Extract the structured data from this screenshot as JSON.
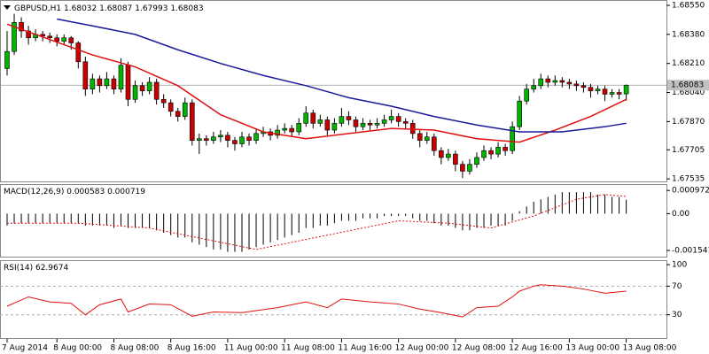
{
  "chart_data": [
    {
      "type": "candlestick",
      "title": "GBPUSD,H1",
      "up_color": "#00b400",
      "down_color": "#c80000",
      "wick_color": "#000000",
      "ylim": [
        1.6752,
        1.68576
      ],
      "yticks": [
        {
          "value": 1.6855,
          "label": "1.68550"
        },
        {
          "value": 1.6838,
          "label": "1.68380"
        },
        {
          "value": 1.6821,
          "label": "1.68210"
        },
        {
          "value": 1.6804,
          "label": "1.68040"
        },
        {
          "value": 1.6787,
          "label": "1.67870"
        },
        {
          "value": 1.67705,
          "label": "1.67705"
        },
        {
          "value": 1.67535,
          "label": "1.67535"
        }
      ],
      "x_labels": [
        {
          "index": 0,
          "label": "7 Aug 2014"
        },
        {
          "index": 7,
          "label": "8 Aug 00:00"
        },
        {
          "index": 15,
          "label": "8 Aug 08:00"
        },
        {
          "index": 23,
          "label": "8 Aug 16:00"
        },
        {
          "index": 31,
          "label": "11 Aug 00:00"
        },
        {
          "index": 39,
          "label": "11 Aug 08:00"
        },
        {
          "index": 47,
          "label": "11 Aug 16:00"
        },
        {
          "index": 55,
          "label": "12 Aug 00:00"
        },
        {
          "index": 63,
          "label": "12 Aug 08:00"
        },
        {
          "index": 71,
          "label": "12 Aug 16:00"
        },
        {
          "index": 79,
          "label": "13 Aug 00:00"
        },
        {
          "index": 87,
          "label": "13 Aug 08:00"
        }
      ],
      "ohlc": [
        [
          1.6818,
          1.684,
          1.6814,
          1.6828
        ],
        [
          1.6828,
          1.685,
          1.6826,
          1.6845
        ],
        [
          1.6845,
          1.6848,
          1.6836,
          1.684
        ],
        [
          1.684,
          1.6843,
          1.6832,
          1.6836
        ],
        [
          1.6836,
          1.6841,
          1.6834,
          1.6838
        ],
        [
          1.6838,
          1.684,
          1.6834,
          1.6837
        ],
        [
          1.6837,
          1.6839,
          1.6833,
          1.6836
        ],
        [
          1.6836,
          1.6838,
          1.6831,
          1.6834
        ],
        [
          1.6834,
          1.6838,
          1.6832,
          1.6836
        ],
        [
          1.6836,
          1.6837,
          1.6829,
          1.6833
        ],
        [
          1.6833,
          1.6834,
          1.6818,
          1.6822
        ],
        [
          1.6822,
          1.6825,
          1.6802,
          1.6806
        ],
        [
          1.6806,
          1.6815,
          1.6803,
          1.6812
        ],
        [
          1.6812,
          1.6814,
          1.6804,
          1.6808
        ],
        [
          1.6808,
          1.6816,
          1.6806,
          1.6812
        ],
        [
          1.6812,
          1.6814,
          1.6803,
          1.6806
        ],
        [
          1.6806,
          1.6824,
          1.6804,
          1.682
        ],
        [
          1.682,
          1.6822,
          1.6796,
          1.68
        ],
        [
          1.68,
          1.6811,
          1.6798,
          1.6808
        ],
        [
          1.6808,
          1.681,
          1.6802,
          1.6805
        ],
        [
          1.6805,
          1.6813,
          1.6803,
          1.681
        ],
        [
          1.681,
          1.6812,
          1.6797,
          1.68
        ],
        [
          1.68,
          1.6803,
          1.6795,
          1.6798
        ],
        [
          1.6798,
          1.68,
          1.679,
          1.6793
        ],
        [
          1.6793,
          1.6795,
          1.6787,
          1.679
        ],
        [
          1.679,
          1.6801,
          1.6788,
          1.6798
        ],
        [
          1.6798,
          1.68,
          1.6773,
          1.6776
        ],
        [
          1.6776,
          1.678,
          1.6768,
          1.6777
        ],
        [
          1.6777,
          1.6779,
          1.6773,
          1.6776
        ],
        [
          1.6776,
          1.6781,
          1.6774,
          1.6778
        ],
        [
          1.6778,
          1.6782,
          1.6775,
          1.6779
        ],
        [
          1.6779,
          1.6781,
          1.6772,
          1.6776
        ],
        [
          1.6776,
          1.6778,
          1.677,
          1.6774
        ],
        [
          1.6774,
          1.6781,
          1.6772,
          1.6778
        ],
        [
          1.6778,
          1.678,
          1.6773,
          1.6776
        ],
        [
          1.6776,
          1.6783,
          1.6774,
          1.678
        ],
        [
          1.678,
          1.6784,
          1.6778,
          1.6781
        ],
        [
          1.6781,
          1.6783,
          1.6776,
          1.6779
        ],
        [
          1.6779,
          1.6785,
          1.6777,
          1.6782
        ],
        [
          1.6782,
          1.6786,
          1.678,
          1.6783
        ],
        [
          1.6783,
          1.6785,
          1.6778,
          1.6781
        ],
        [
          1.6781,
          1.6789,
          1.6779,
          1.6786
        ],
        [
          1.6786,
          1.6796,
          1.6784,
          1.6792
        ],
        [
          1.6792,
          1.6794,
          1.6783,
          1.6786
        ],
        [
          1.6786,
          1.6791,
          1.6784,
          1.6788
        ],
        [
          1.6788,
          1.679,
          1.6779,
          1.6782
        ],
        [
          1.6782,
          1.6789,
          1.678,
          1.6786
        ],
        [
          1.6786,
          1.6795,
          1.6784,
          1.679
        ],
        [
          1.679,
          1.6793,
          1.6785,
          1.6788
        ],
        [
          1.6788,
          1.679,
          1.6781,
          1.6784
        ],
        [
          1.6784,
          1.6789,
          1.6782,
          1.6786
        ],
        [
          1.6786,
          1.6788,
          1.6782,
          1.6785
        ],
        [
          1.6785,
          1.6789,
          1.6783,
          1.6786
        ],
        [
          1.6786,
          1.6791,
          1.6784,
          1.6788
        ],
        [
          1.6788,
          1.6794,
          1.6786,
          1.679
        ],
        [
          1.679,
          1.6792,
          1.6784,
          1.6787
        ],
        [
          1.6787,
          1.6789,
          1.6783,
          1.6786
        ],
        [
          1.6786,
          1.6788,
          1.6777,
          1.678
        ],
        [
          1.678,
          1.6782,
          1.6772,
          1.6776
        ],
        [
          1.6776,
          1.6781,
          1.6774,
          1.6778
        ],
        [
          1.6778,
          1.678,
          1.6767,
          1.677
        ],
        [
          1.677,
          1.6772,
          1.6762,
          1.6766
        ],
        [
          1.6766,
          1.6771,
          1.6764,
          1.6768
        ],
        [
          1.6768,
          1.677,
          1.6758,
          1.6762
        ],
        [
          1.6762,
          1.6764,
          1.6754,
          1.6758
        ],
        [
          1.6758,
          1.6765,
          1.6756,
          1.6762
        ],
        [
          1.6762,
          1.6769,
          1.676,
          1.6766
        ],
        [
          1.6766,
          1.6773,
          1.6764,
          1.677
        ],
        [
          1.677,
          1.6772,
          1.6765,
          1.6768
        ],
        [
          1.6768,
          1.6775,
          1.6766,
          1.6772
        ],
        [
          1.6772,
          1.6774,
          1.6767,
          1.677
        ],
        [
          1.677,
          1.6787,
          1.6768,
          1.6784
        ],
        [
          1.6784,
          1.6802,
          1.6782,
          1.6799
        ],
        [
          1.6799,
          1.6809,
          1.6797,
          1.6806
        ],
        [
          1.6806,
          1.6812,
          1.6804,
          1.6808
        ],
        [
          1.6808,
          1.6815,
          1.6806,
          1.6812
        ],
        [
          1.6812,
          1.6814,
          1.6807,
          1.681
        ],
        [
          1.681,
          1.6814,
          1.6808,
          1.6811
        ],
        [
          1.6811,
          1.6813,
          1.6807,
          1.681
        ],
        [
          1.681,
          1.6812,
          1.6806,
          1.6809
        ],
        [
          1.6809,
          1.6811,
          1.6805,
          1.6808
        ],
        [
          1.6808,
          1.681,
          1.6804,
          1.6807
        ],
        [
          1.6807,
          1.6809,
          1.6801,
          1.6805
        ],
        [
          1.6805,
          1.6808,
          1.6803,
          1.6806
        ],
        [
          1.6806,
          1.6808,
          1.6799,
          1.6803
        ],
        [
          1.6803,
          1.6806,
          1.6801,
          1.6804
        ],
        [
          1.6804,
          1.6806,
          1.68,
          1.6803
        ],
        [
          1.68032,
          1.68087,
          1.67993,
          1.68083
        ]
      ],
      "moving_averages": [
        {
          "color": "#e01010",
          "index": [
            0,
            6,
            12,
            18,
            24,
            30,
            36,
            42,
            48,
            54,
            60,
            66,
            72,
            77,
            82,
            87
          ],
          "values": [
            1.6844,
            1.6835,
            1.6826,
            1.6819,
            1.6808,
            1.6791,
            1.6781,
            1.6777,
            1.678,
            1.6783,
            1.6782,
            1.6777,
            1.6775,
            1.6782,
            1.679,
            1.68
          ]
        },
        {
          "color": "#1a1a9a",
          "index": [
            7,
            12,
            18,
            24,
            30,
            36,
            42,
            48,
            54,
            60,
            66,
            72,
            78,
            84,
            87
          ],
          "values": [
            1.6847,
            1.6843,
            1.6838,
            1.6829,
            1.6821,
            1.6814,
            1.6808,
            1.6801,
            1.6796,
            1.679,
            1.6785,
            1.6781,
            1.6781,
            1.6784,
            1.6786
          ]
        }
      ]
    },
    {
      "type": "macd",
      "title": "MACD(12,26,9)",
      "histogram_color": "#000000",
      "signal_color": "#e01010",
      "ylim": [
        -0.0018,
        0.0012
      ],
      "yticks": [
        0.000972,
        {
          "value": 0,
          "label": "0.00"
        },
        -0.001541
      ],
      "histogram": [
        -0.0005,
        -0.0004,
        -0.0004,
        -0.0004,
        -0.0004,
        -0.0004,
        -0.0004,
        -0.0004,
        -0.0004,
        -0.0004,
        -0.0004,
        -0.0005,
        -0.0005,
        -0.0005,
        -0.0005,
        -0.0006,
        -0.0005,
        -0.0006,
        -0.0006,
        -0.0006,
        -0.0006,
        -0.0007,
        -0.0008,
        -0.0009,
        -0.001,
        -0.001,
        -0.0012,
        -0.0013,
        -0.0014,
        -0.0015,
        -0.0015,
        -0.0016,
        -0.0016,
        -0.0016,
        -0.0015,
        -0.0014,
        -0.0013,
        -0.0012,
        -0.0011,
        -0.001,
        -0.0009,
        -0.0008,
        -0.0006,
        -0.0006,
        -0.0005,
        -0.0005,
        -0.0004,
        -0.0003,
        -0.0003,
        -0.0003,
        -0.0002,
        -0.0002,
        -0.0002,
        -0.0001,
        -0.0001,
        -0.0001,
        -0.0001,
        -0.0002,
        -0.0003,
        -0.0003,
        -0.0004,
        -0.0005,
        -0.0005,
        -0.0006,
        -0.0007,
        -0.0007,
        -0.0006,
        -0.0006,
        -0.0005,
        -0.0005,
        -0.0005,
        -0.0003,
        0.0001,
        0.0003,
        0.0005,
        0.0006,
        0.0007,
        0.0008,
        0.0009,
        0.0009,
        0.0009,
        0.0009,
        0.0009,
        0.0008,
        0.0008,
        0.0007,
        0.0007,
        0.000583
      ],
      "signal": {
        "index": [
          0,
          10,
          20,
          30,
          35,
          45,
          55,
          62,
          68,
          74,
          80,
          84,
          87
        ],
        "values": [
          -0.0004,
          -0.0004,
          -0.0006,
          -0.0012,
          -0.0015,
          -0.0009,
          -0.0003,
          -0.0004,
          -0.0006,
          -0.0001,
          0.0006,
          0.0008,
          0.000719
        ]
      }
    },
    {
      "type": "rsi",
      "title": "RSI(14)",
      "color": "#e01010",
      "ylim": [
        -2.5,
        105
      ],
      "yticks": [
        100,
        70,
        30
      ],
      "levels": [
        70,
        30
      ],
      "index": [
        0,
        3,
        6,
        9,
        11,
        13,
        16,
        17,
        20,
        23,
        26,
        29,
        33,
        38,
        42,
        45,
        47,
        51,
        55,
        58,
        61,
        64,
        66,
        69,
        71,
        72,
        74,
        75,
        78,
        81,
        84,
        86,
        87
      ],
      "values": [
        42,
        55,
        48,
        46,
        30,
        44,
        52,
        34,
        45,
        44,
        28,
        34,
        33,
        40,
        48,
        40,
        52,
        48,
        45,
        38,
        33,
        27,
        40,
        42,
        55,
        63,
        70,
        72,
        70,
        66,
        60,
        62,
        62.9674
      ]
    }
  ]
}
